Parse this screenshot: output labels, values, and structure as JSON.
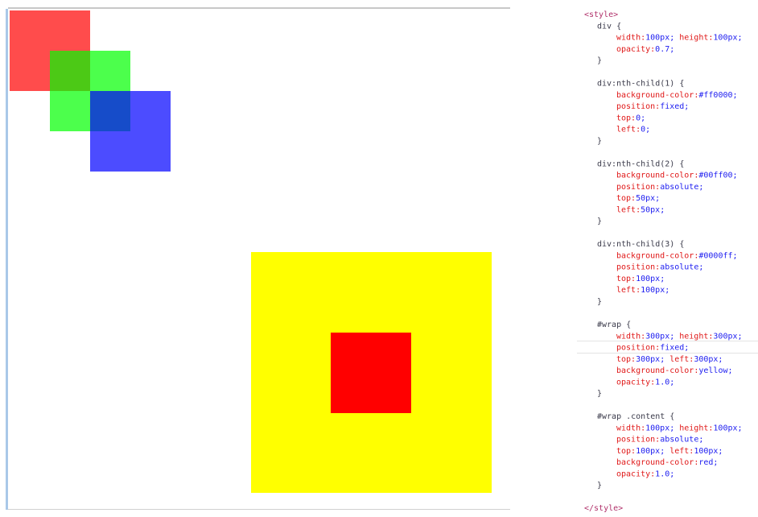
{
  "code": {
    "open": "<style>",
    "close": "</style>",
    "colors": {
      "tag": "#b0306a",
      "selector": "#3a3a4a",
      "property": "#e01818",
      "value": "#1c1cf0"
    },
    "rules": [
      {
        "selector": "div {",
        "declarations": [
          [
            [
              "width:",
              "100px;"
            ],
            [
              "height:",
              "100px;"
            ]
          ],
          [
            [
              "opacity:",
              "0.7;"
            ]
          ]
        ],
        "end": "}"
      },
      {
        "selector": "div:nth-child(1) {",
        "declarations": [
          [
            [
              "background-color:",
              "#ff0000;"
            ]
          ],
          [
            [
              "position:",
              "fixed;"
            ]
          ],
          [
            [
              "top:",
              "0;"
            ]
          ],
          [
            [
              "left:",
              "0;"
            ]
          ]
        ],
        "end": "}"
      },
      {
        "selector": "div:nth-child(2) {",
        "declarations": [
          [
            [
              "background-color:",
              "#00ff00;"
            ]
          ],
          [
            [
              "position:",
              "absolute;"
            ]
          ],
          [
            [
              "top:",
              "50px;"
            ]
          ],
          [
            [
              "left:",
              "50px;"
            ]
          ]
        ],
        "end": "}"
      },
      {
        "selector": "div:nth-child(3) {",
        "declarations": [
          [
            [
              "background-color:",
              "#0000ff;"
            ]
          ],
          [
            [
              "position:",
              "absolute;"
            ]
          ],
          [
            [
              "top:",
              "100px;"
            ]
          ],
          [
            [
              "left:",
              "100px;"
            ]
          ]
        ],
        "end": "}"
      },
      {
        "selector": "#wrap {",
        "declarations": [
          [
            [
              "width:",
              "300px;"
            ],
            [
              "height:",
              "300px;"
            ]
          ],
          [
            [
              "position:",
              "fixed;"
            ]
          ],
          [
            [
              "top:",
              "300px;"
            ],
            [
              "left:",
              "300px;"
            ]
          ],
          [
            [
              "background-color:",
              "yellow;"
            ]
          ],
          [
            [
              "opacity:",
              "1.0;"
            ]
          ]
        ],
        "end": "}"
      },
      {
        "selector": "#wrap .content {",
        "declarations": [
          [
            [
              "width:",
              "100px;"
            ],
            [
              "height:",
              "100px;"
            ]
          ],
          [
            [
              "position:",
              "absolute;"
            ]
          ],
          [
            [
              "top:",
              "100px;"
            ],
            [
              "left:",
              "100px;"
            ]
          ],
          [
            [
              "background-color:",
              "red;"
            ]
          ],
          [
            [
              "opacity:",
              "1.0;"
            ]
          ]
        ],
        "end": "}"
      }
    ]
  }
}
